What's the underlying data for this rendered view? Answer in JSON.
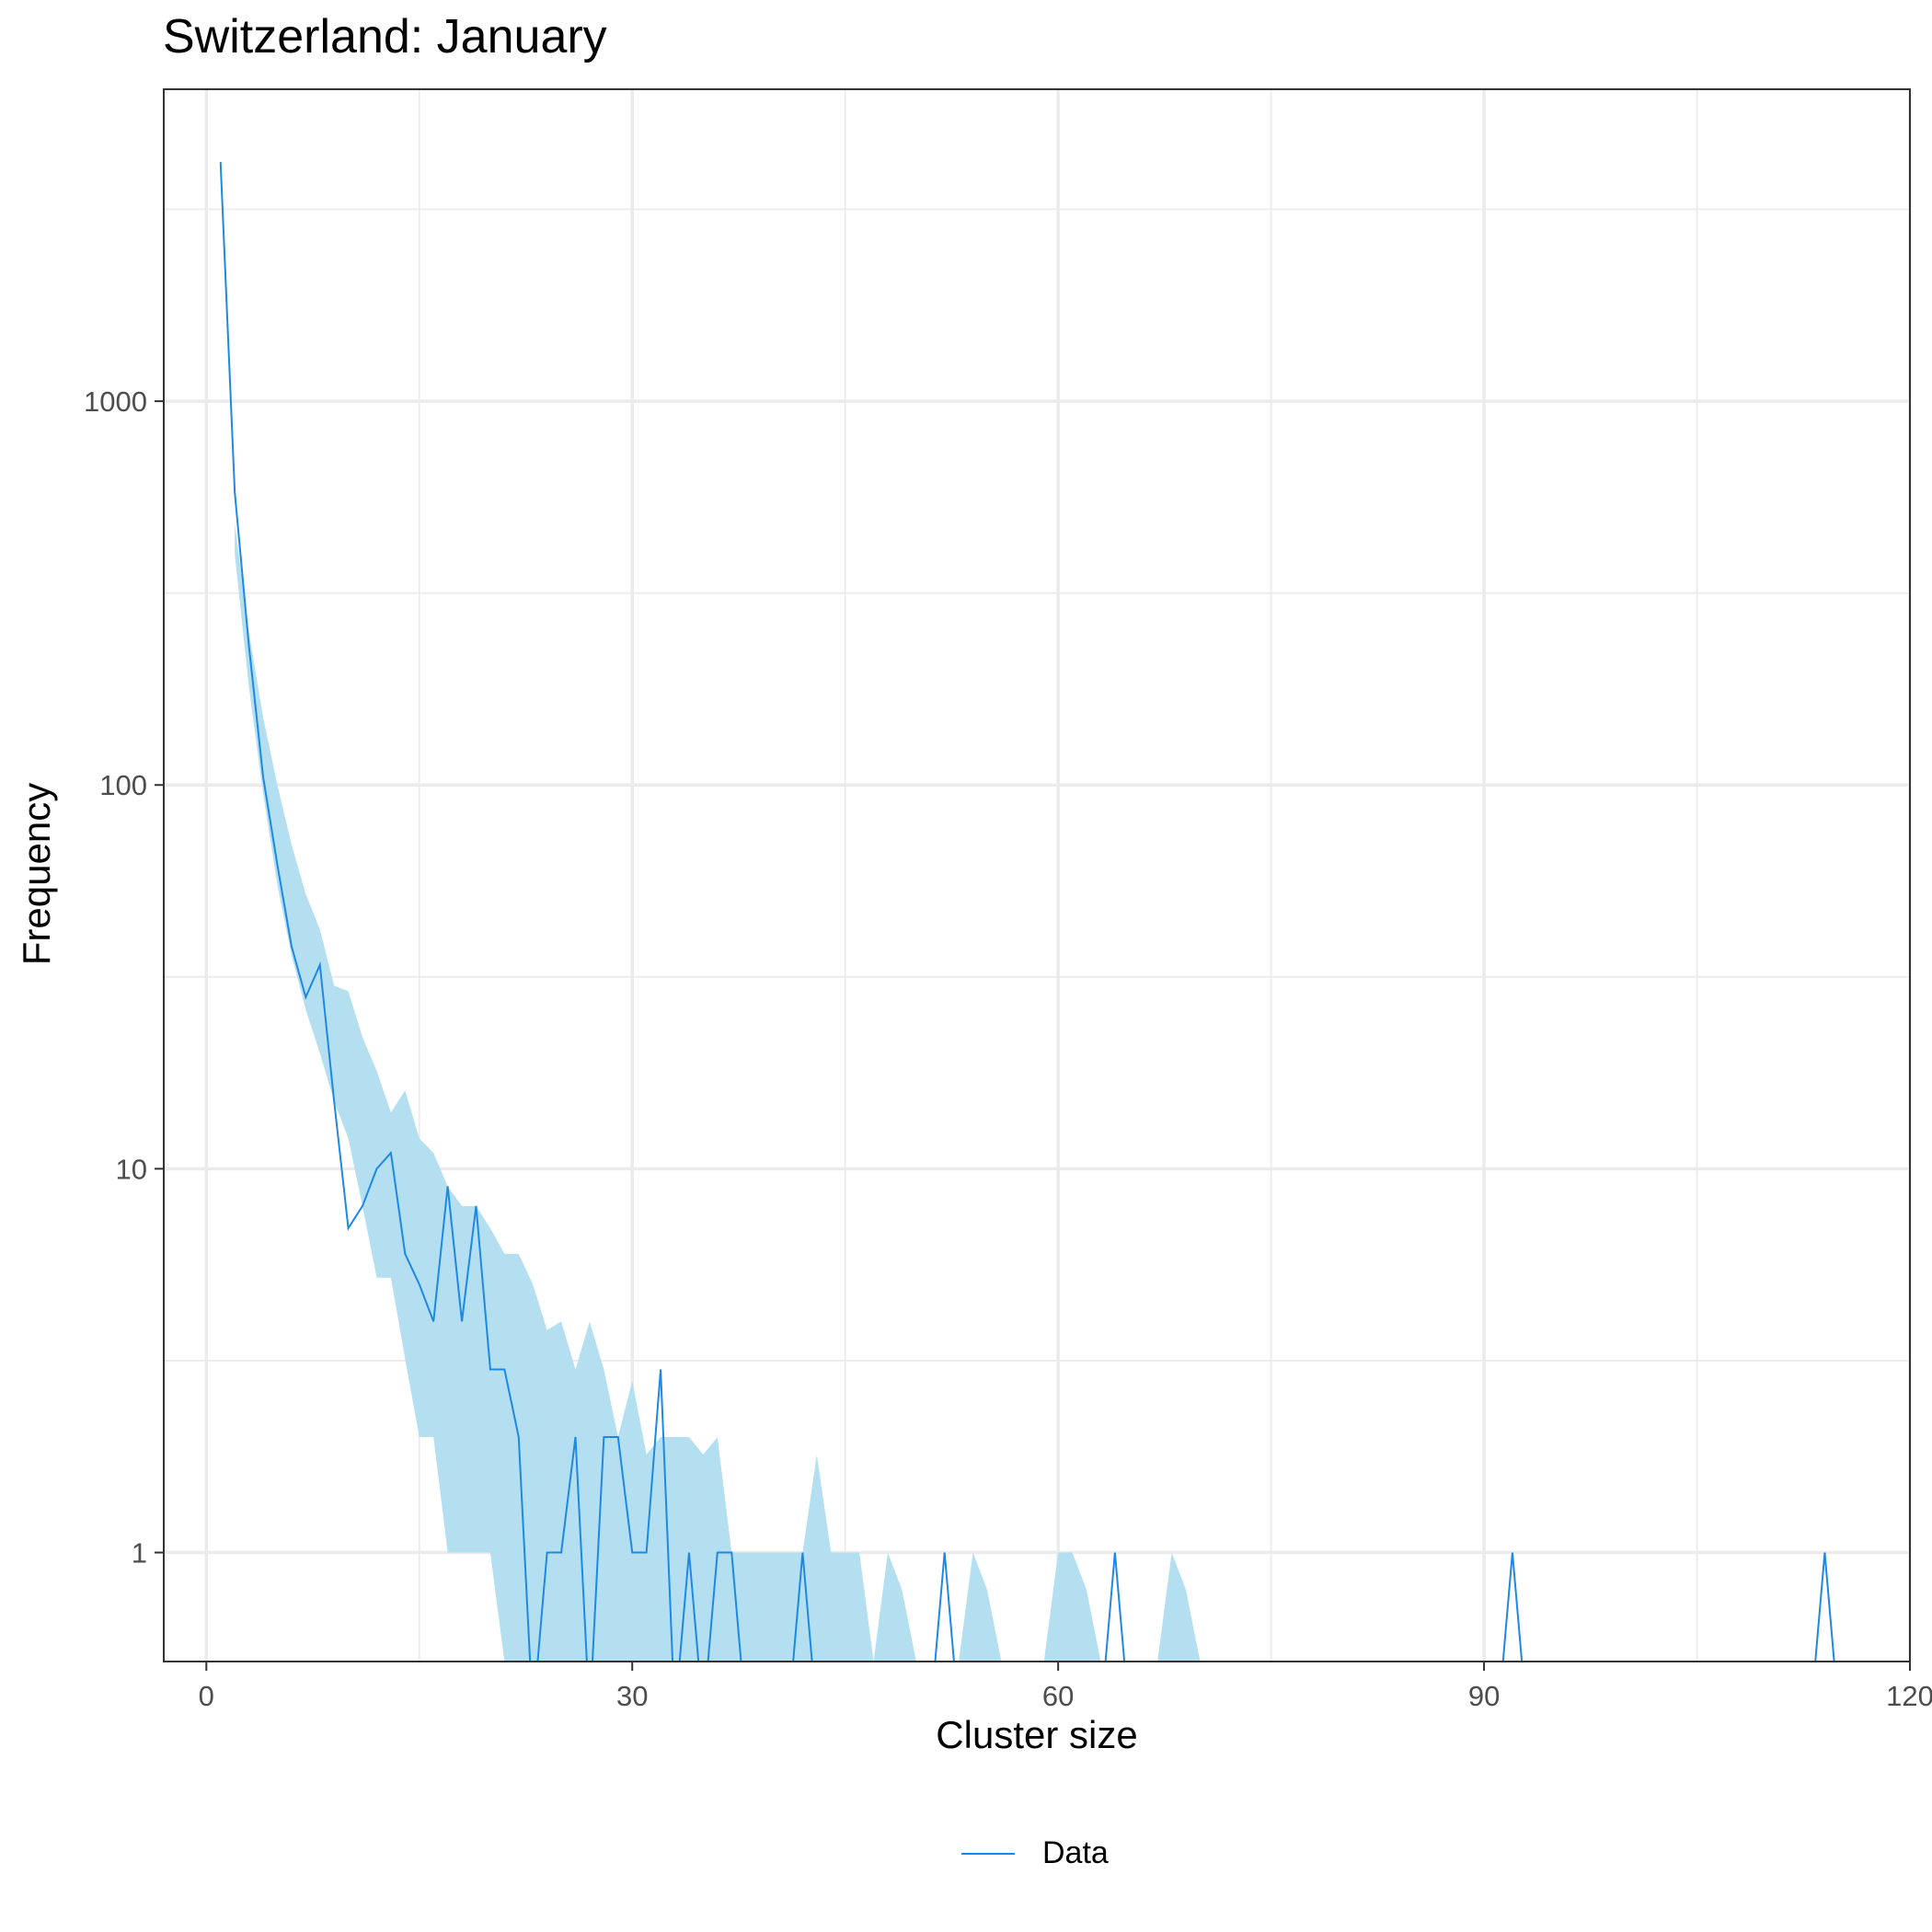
{
  "chart_data": {
    "type": "line",
    "title": "Switzerland: January",
    "xlabel": "Cluster size",
    "ylabel": "Frequency",
    "x_scale": "linear",
    "y_scale": "log10",
    "xlim": [
      -3,
      120
    ],
    "ylim": [
      0.52,
      6500
    ],
    "x_ticks": [
      0,
      30,
      60,
      90,
      120
    ],
    "x_tick_labels": [
      "0",
      "30",
      "60",
      "90",
      "120"
    ],
    "y_ticks": [
      1,
      10,
      100,
      1000
    ],
    "y_tick_labels": [
      "1",
      "10",
      "100",
      "1000"
    ],
    "grid": true,
    "legend": {
      "position": "bottom",
      "entries": [
        "Data"
      ]
    },
    "colors": {
      "line": "#1E88E5",
      "band": "#B3DFF1",
      "grid": "#EBEBEB"
    },
    "series": [
      {
        "name": "Data",
        "x": [
          1,
          2,
          3,
          4,
          5,
          6,
          7,
          8,
          9,
          10,
          11,
          12,
          13,
          14,
          15,
          16,
          17,
          18,
          19,
          20,
          21,
          22,
          23,
          24,
          25,
          26,
          27,
          28,
          29,
          30,
          31,
          32,
          33,
          34,
          35,
          36,
          37,
          38,
          39,
          40,
          41,
          42,
          43,
          44,
          45,
          46,
          47,
          48,
          49,
          50,
          51,
          52,
          53,
          54,
          55,
          56,
          57,
          58,
          59,
          60,
          61,
          62,
          63,
          64,
          65,
          66,
          67,
          68,
          69,
          70,
          71,
          72,
          73,
          74,
          75,
          76,
          77,
          78,
          79,
          80,
          81,
          82,
          83,
          84,
          85,
          86,
          87,
          88,
          89,
          90,
          91,
          92,
          93,
          94,
          95,
          96,
          97,
          98,
          99,
          100,
          101,
          102,
          103,
          104,
          105,
          106,
          107,
          108,
          109,
          110,
          111,
          112,
          113,
          114,
          115
        ],
        "y": [
          4200,
          580,
          230,
          105,
          62,
          38,
          28,
          34,
          15,
          7,
          8,
          10,
          11,
          6,
          5,
          4,
          9,
          4,
          8,
          3,
          3,
          2,
          0,
          1,
          1,
          2,
          0,
          2,
          2,
          1,
          1,
          3,
          0,
          1,
          0,
          1,
          1,
          0,
          0,
          0,
          0,
          1,
          0,
          0,
          0,
          0,
          0,
          0,
          0,
          0,
          0,
          1,
          0,
          0,
          0,
          0,
          0,
          0,
          0,
          0,
          0,
          0,
          0,
          1,
          0,
          0,
          0,
          0,
          0,
          0,
          0,
          0,
          0,
          0,
          0,
          0,
          0,
          0,
          0,
          0,
          0,
          0,
          0,
          0,
          0,
          0,
          0,
          0,
          0,
          0,
          0,
          1,
          0,
          0,
          0,
          0,
          0,
          0,
          0,
          0,
          0,
          0,
          0,
          0,
          0,
          0,
          0,
          0,
          0,
          0,
          0,
          0,
          0,
          1,
          0
        ]
      }
    ],
    "band": {
      "x": [
        2,
        3,
        4,
        5,
        6,
        7,
        8,
        9,
        10,
        11,
        12,
        13,
        14,
        15,
        16,
        17,
        18,
        19,
        20,
        21,
        22,
        23,
        24,
        25,
        26,
        27,
        28,
        29,
        30,
        31,
        32,
        33,
        34,
        35,
        36,
        37,
        38,
        39,
        40,
        41,
        42,
        43,
        44,
        45,
        46,
        47,
        48,
        49,
        50,
        51,
        52,
        53,
        54,
        55,
        56,
        57,
        58,
        59,
        60,
        61,
        62,
        63,
        64,
        65,
        66,
        67,
        68,
        69,
        70
      ],
      "lower": [
        400,
        180,
        95,
        55,
        36,
        26,
        20,
        15,
        12,
        8,
        5.2,
        5.2,
        3.2,
        2,
        2,
        1,
        1,
        1,
        1,
        0.52,
        0.52,
        0.52,
        0.52,
        0.52,
        0.52,
        0.52,
        0.52,
        0.52,
        0.52,
        0.52,
        0.52,
        0.52,
        0.52,
        0.52,
        0.52,
        0.52,
        0.52,
        0.52,
        0.52,
        0.52,
        0.52,
        0.52,
        0.52,
        0.52,
        0.52,
        0.52,
        0.52,
        0.52,
        0.52,
        0.52,
        0.52,
        0.52,
        0.52,
        0.52,
        0.52,
        0.52,
        0.52,
        0.52,
        0.52,
        0.52,
        0.52,
        0.52,
        0.52,
        0.52,
        0.52,
        0.52,
        0.52,
        0.52,
        0.52
      ],
      "upper": [
        480,
        250,
        150,
        100,
        70,
        52,
        42,
        30,
        29,
        22,
        18,
        14,
        16,
        12,
        11,
        9,
        8,
        8,
        7,
        6,
        6,
        5,
        3.8,
        4,
        3,
        4,
        3,
        2,
        2.8,
        1.8,
        2,
        2,
        2,
        1.8,
        2,
        1,
        1,
        1,
        1,
        1,
        1,
        1.8,
        1,
        1,
        1,
        0.52,
        1,
        0.8,
        0.52,
        0.52,
        0.52,
        0.52,
        1,
        0.8,
        0.52,
        0.52,
        0.52,
        0.52,
        1,
        1,
        0.8,
        0.52,
        0.52,
        0.52,
        0.52,
        0.52,
        1,
        0.8,
        0.52
      ]
    }
  }
}
